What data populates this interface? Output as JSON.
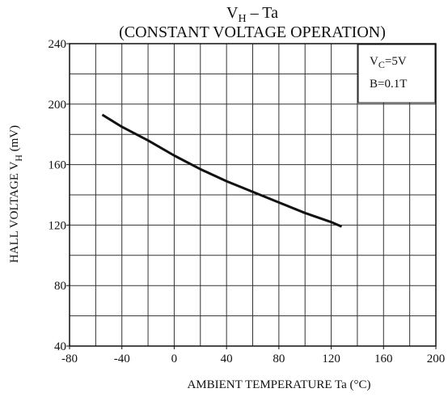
{
  "chart_data": {
    "type": "line",
    "title": [
      "V",
      "H",
      " – Ta"
    ],
    "subtitle": "(CONSTANT VOLTAGE OPERATION)",
    "annotations": [
      [
        "V",
        "C",
        "=5V"
      ],
      [
        "B=0.1T"
      ]
    ],
    "xlabel": "AMBIENT TEMPERATURE   Ta   (°C)",
    "ylabel": [
      "HALL VOLTAGE   V",
      "H",
      "   (mV)"
    ],
    "x": [
      -55,
      -40,
      -20,
      0,
      20,
      40,
      60,
      80,
      100,
      120,
      128
    ],
    "series": [
      {
        "color": "#111111",
        "values": [
          193,
          185,
          176,
          166,
          157,
          149,
          142,
          135,
          128,
          122,
          119
        ]
      }
    ],
    "xlim": [
      -80,
      200
    ],
    "ylim": [
      40,
      240
    ],
    "xticks": [
      -80,
      -40,
      0,
      40,
      80,
      120,
      160,
      200
    ],
    "yticks": [
      40,
      80,
      120,
      160,
      200,
      240
    ],
    "xgrid": [
      -60,
      -40,
      -20,
      0,
      20,
      40,
      60,
      80,
      100,
      120,
      140,
      160,
      180
    ],
    "ygrid": [
      60,
      80,
      100,
      120,
      140,
      160,
      180,
      200,
      220
    ],
    "grid": true
  }
}
